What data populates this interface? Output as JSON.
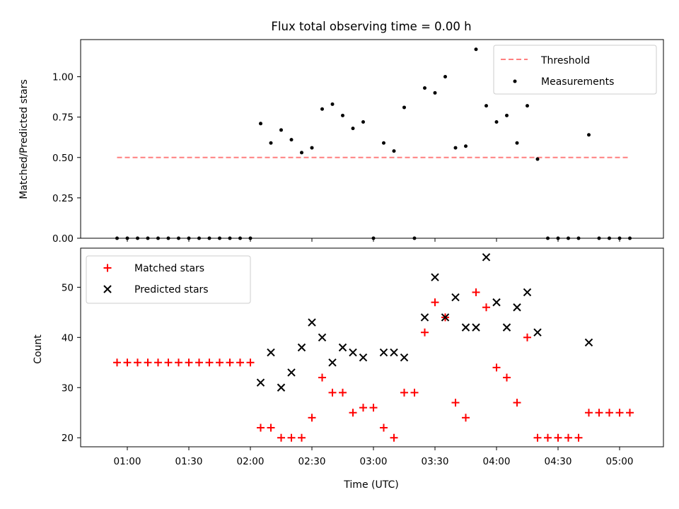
{
  "chart_data": [
    {
      "type": "scatter",
      "title": "Flux total observing time = 0.00 h",
      "xlabel": "",
      "ylabel": "Matched/Predicted stars",
      "ylim": [
        0,
        1.23
      ],
      "yticks": [
        "0.00",
        "0.25",
        "0.50",
        "0.75",
        "1.00"
      ],
      "legend_position": "top-right",
      "threshold": {
        "name": "Threshold",
        "value": 0.5,
        "x_start": "00:55",
        "x_end": "05:05",
        "color": "#ff7f7f"
      },
      "series": [
        {
          "name": "Measurements",
          "color": "#000000",
          "marker": "dot",
          "x": [
            "00:55",
            "01:00",
            "01:05",
            "01:10",
            "01:15",
            "01:20",
            "01:25",
            "01:30",
            "01:35",
            "01:40",
            "01:45",
            "01:50",
            "01:55",
            "02:00",
            "02:05",
            "02:10",
            "02:15",
            "02:20",
            "02:25",
            "02:30",
            "02:35",
            "02:40",
            "02:45",
            "02:50",
            "02:55",
            "03:00",
            "03:05",
            "03:10",
            "03:15",
            "03:20",
            "03:25",
            "03:30",
            "03:35",
            "03:40",
            "03:45",
            "03:50",
            "03:55",
            "04:00",
            "04:05",
            "04:10",
            "04:15",
            "04:20",
            "04:25",
            "04:30",
            "04:35",
            "04:40",
            "04:45",
            "04:50",
            "04:55",
            "05:00",
            "05:05"
          ],
          "values": [
            0,
            0,
            0,
            0,
            0,
            0,
            0,
            0,
            0,
            0,
            0,
            0,
            0,
            0,
            0.71,
            0.59,
            0.67,
            0.61,
            0.53,
            0.56,
            0.8,
            0.83,
            0.76,
            0.68,
            0.72,
            0,
            0.59,
            0.54,
            0.81,
            0,
            0.93,
            0.9,
            1.0,
            0.56,
            0.57,
            1.17,
            0.82,
            0.72,
            0.76,
            0.59,
            0.82,
            0.49,
            0,
            0,
            0,
            0,
            0.64,
            0,
            0,
            0,
            0
          ]
        }
      ]
    },
    {
      "type": "scatter",
      "title": "",
      "xlabel": "Time (UTC)",
      "ylabel": "Count",
      "ylim": [
        18.2,
        57.8
      ],
      "yticks": [
        "20",
        "30",
        "40",
        "50"
      ],
      "xticks": [
        "01:00",
        "01:30",
        "02:00",
        "02:30",
        "03:00",
        "03:30",
        "04:00",
        "04:30",
        "05:00"
      ],
      "legend_position": "top-left",
      "series": [
        {
          "name": "Matched stars",
          "color": "#ff0000",
          "marker": "plus",
          "x": [
            "00:55",
            "01:00",
            "01:05",
            "01:10",
            "01:15",
            "01:20",
            "01:25",
            "01:30",
            "01:35",
            "01:40",
            "01:45",
            "01:50",
            "01:55",
            "02:00",
            "02:05",
            "02:10",
            "02:15",
            "02:20",
            "02:25",
            "02:30",
            "02:35",
            "02:40",
            "02:45",
            "02:50",
            "02:55",
            "03:00",
            "03:05",
            "03:10",
            "03:15",
            "03:20",
            "03:25",
            "03:30",
            "03:35",
            "03:40",
            "03:45",
            "03:50",
            "03:55",
            "04:00",
            "04:05",
            "04:10",
            "04:15",
            "04:20",
            "04:25",
            "04:30",
            "04:35",
            "04:40",
            "04:45",
            "04:50",
            "04:55",
            "05:00",
            "05:05"
          ],
          "values": [
            35,
            35,
            35,
            35,
            35,
            35,
            35,
            35,
            35,
            35,
            35,
            35,
            35,
            35,
            22,
            22,
            20,
            20,
            20,
            24,
            32,
            29,
            29,
            25,
            26,
            26,
            22,
            20,
            29,
            29,
            41,
            47,
            44,
            27,
            24,
            49,
            46,
            34,
            32,
            27,
            40,
            20,
            20,
            20,
            20,
            20,
            25,
            25,
            25,
            25,
            25
          ]
        },
        {
          "name": "Predicted stars",
          "color": "#000000",
          "marker": "x",
          "x": [
            "02:05",
            "02:10",
            "02:15",
            "02:20",
            "02:25",
            "02:30",
            "02:35",
            "02:40",
            "02:45",
            "02:50",
            "02:55",
            "03:05",
            "03:10",
            "03:15",
            "03:25",
            "03:30",
            "03:35",
            "03:40",
            "03:45",
            "03:50",
            "03:55",
            "04:00",
            "04:05",
            "04:10",
            "04:15",
            "04:20",
            "04:45"
          ],
          "values": [
            31,
            37,
            30,
            33,
            38,
            43,
            40,
            35,
            38,
            37,
            36,
            37,
            37,
            36,
            44,
            52,
            44,
            48,
            42,
            42,
            56,
            47,
            42,
            46,
            49,
            41,
            39
          ]
        }
      ]
    }
  ]
}
